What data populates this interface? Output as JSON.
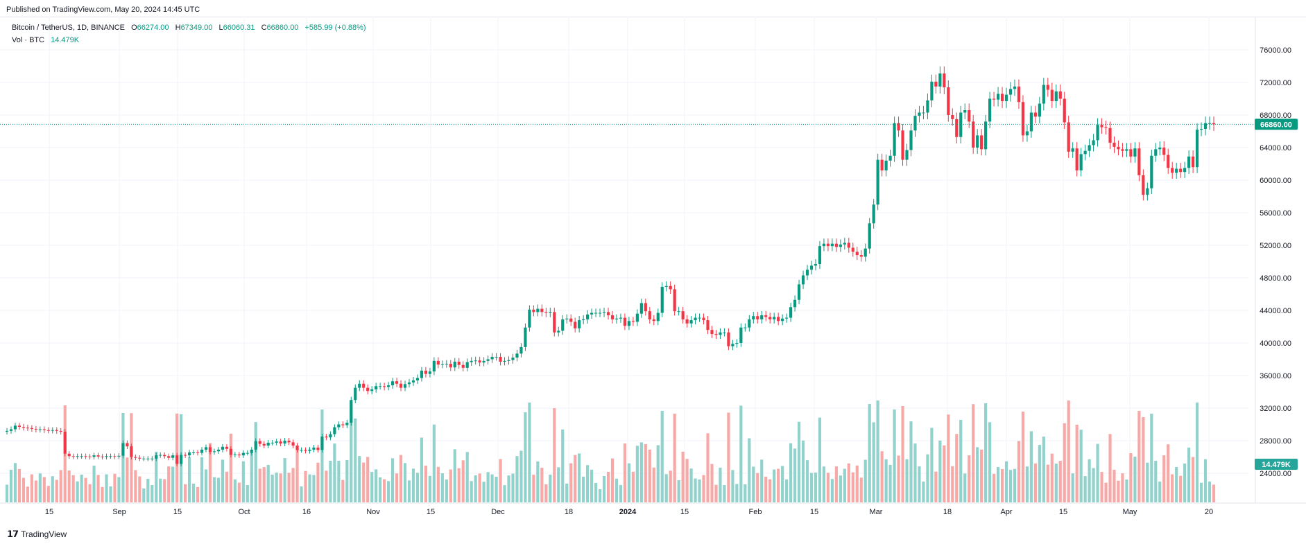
{
  "header": {
    "published": "Published on TradingView.com, May 20, 2024 14:45 UTC"
  },
  "legend": {
    "symbol": "Bitcoin / TetherUS, 1D, BINANCE",
    "open_label": "O",
    "open": "66274.00",
    "high_label": "H",
    "high": "67349.00",
    "low_label": "L",
    "low": "66060.31",
    "close_label": "C",
    "close": "66860.00",
    "change": "+585.99 (+0.88%)",
    "vol_label": "Vol · BTC",
    "vol_value": "14.479K"
  },
  "footer": {
    "logo_text": "TradingView"
  },
  "colors": {
    "up": "#089981",
    "down": "#f23645",
    "vol_up": "#92d2cc",
    "vol_down": "#f7a9a7",
    "grid": "#f0f3fa"
  },
  "chart_data": {
    "type": "candlestick",
    "grid": true,
    "price_axis": {
      "position": "right",
      "ticks": [
        "76000.00",
        "72000.00",
        "68000.00",
        "64000.00",
        "60000.00",
        "56000.00",
        "52000.00",
        "48000.00",
        "44000.00",
        "40000.00",
        "36000.00",
        "32000.00",
        "28000.00",
        "24000.00"
      ],
      "last_price": "66860.00",
      "last_volume": "14.479K"
    },
    "time_axis": {
      "ticks": [
        "15",
        "Sep",
        "15",
        "Oct",
        "16",
        "Nov",
        "15",
        "Dec",
        "18",
        "2024",
        "15",
        "Feb",
        "15",
        "Mar",
        "18",
        "Apr",
        "15",
        "May",
        "20"
      ],
      "bold": [
        "2024"
      ]
    },
    "closes": [
      29200,
      29400,
      29850,
      29700,
      29600,
      29550,
      29450,
      29350,
      29400,
      29300,
      29250,
      29300,
      29200,
      29100,
      26400,
      26100,
      26050,
      26100,
      26100,
      26050,
      26000,
      26200,
      26050,
      26000,
      26100,
      26100,
      26050,
      26150,
      27700,
      27300,
      26000,
      25900,
      25800,
      25800,
      25800,
      25800,
      26200,
      26250,
      26100,
      25900,
      26200,
      25150,
      26250,
      26200,
      26550,
      26550,
      26500,
      26900,
      27200,
      26600,
      26700,
      26900,
      27250,
      27000,
      26250,
      26300,
      26200,
      26500,
      26500,
      26900,
      27950,
      27600,
      27400,
      27750,
      27750,
      27900,
      27650,
      28000,
      27800,
      27400,
      26850,
      26850,
      26750,
      26900,
      27150,
      26850,
      28500,
      28400,
      28800,
      29650,
      30000,
      29900,
      30200,
      33000,
      34500,
      35000,
      34500,
      34100,
      34300,
      34700,
      34700,
      34600,
      34800,
      35300,
      35000,
      34500,
      34950,
      35150,
      35400,
      35700,
      36600,
      36200,
      36500,
      37800,
      37350,
      37400,
      37450,
      37000,
      37700,
      37300,
      36950,
      37650,
      37800,
      37850,
      37600,
      37800,
      38000,
      38300,
      38300,
      37700,
      37800,
      37900,
      38200,
      38700,
      39500,
      41900,
      44100,
      43800,
      44200,
      43800,
      43700,
      43800,
      41300,
      41500,
      42900,
      43000,
      42600,
      41800,
      42800,
      42900,
      43500,
      43700,
      43700,
      43700,
      43800,
      43400,
      42900,
      43000,
      43100,
      42100,
      42700,
      42600,
      43600,
      44900,
      43900,
      42900,
      42700,
      43700,
      46900,
      47000,
      46600,
      43900,
      43900,
      42900,
      42400,
      42800,
      43100,
      43100,
      42800,
      41600,
      41100,
      41000,
      41300,
      41300,
      39600,
      39900,
      40000,
      41900,
      41900,
      42900,
      43300,
      42900,
      43400,
      43200,
      42900,
      43200,
      42700,
      43000,
      43100,
      44400,
      45300,
      47200,
      48300,
      49000,
      49500,
      49700,
      51900,
      52200,
      51900,
      52200,
      51800,
      52100,
      52300,
      51700,
      51200,
      50800,
      50600,
      51600,
      54700,
      57000,
      62500,
      61200,
      62400,
      63000,
      67000,
      66100,
      62500,
      63700,
      66100,
      67900,
      68300,
      68300,
      69800,
      72100,
      71500,
      73100,
      71400,
      68000,
      67500,
      65300,
      68300,
      68600,
      67200,
      64000,
      65500,
      63800,
      67200,
      70000,
      69900,
      70600,
      69700,
      70500,
      71200,
      71500,
      69600,
      65500,
      66000,
      68300,
      67800,
      69400,
      71700,
      71100,
      69700,
      70900,
      70000,
      67100,
      63500,
      63900,
      61200,
      63200,
      63600,
      64300,
      64900,
      66800,
      66500,
      66400,
      64600,
      64100,
      63800,
      63600,
      63800,
      62900,
      63900,
      60600,
      58200,
      59000,
      63000,
      63800,
      64000,
      63100,
      61500,
      60900,
      61400,
      61000,
      61500,
      62900,
      61600,
      66200,
      66300,
      67000,
      67000,
      66860
    ],
    "volume_series_note": "Volume in BTC"
  }
}
